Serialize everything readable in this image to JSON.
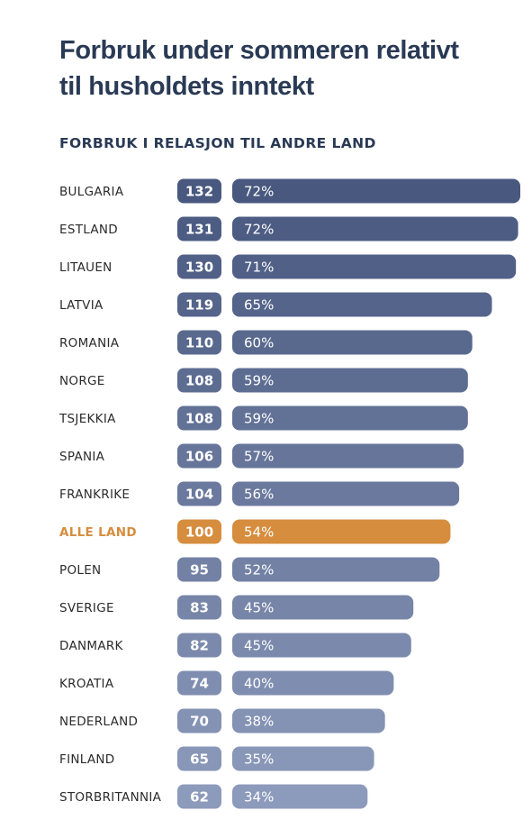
{
  "title_line1": "Forbruk under sommeren relativt",
  "title_line2": "til husholdets inntekt",
  "colors": {
    "title": "#2a3a55",
    "highlight": "#d68d3e",
    "bar_dark": "#48587f",
    "bar_light": "#8c9abb"
  },
  "chart_data": {
    "type": "bar",
    "orientation": "horizontal",
    "title": "FORBRUK I RELASJON TIL ANDRE LAND",
    "categories": [
      "BULGARIA",
      "ESTLAND",
      "LITAUEN",
      "LATVIA",
      "ROMANIA",
      "NORGE",
      "TSJEKKIA",
      "SPANIA",
      "FRANKRIKE",
      "ALLE LAND",
      "POLEN",
      "SVERIGE",
      "DANMARK",
      "KROATIA",
      "NEDERLAND",
      "FINLAND",
      "STORBRITANNIA"
    ],
    "series": [
      {
        "name": "Indeks",
        "values": [
          132,
          131,
          130,
          119,
          110,
          108,
          108,
          106,
          104,
          100,
          95,
          83,
          82,
          74,
          70,
          65,
          62
        ]
      },
      {
        "name": "Andel",
        "values": [
          "72%",
          "72%",
          "71%",
          "65%",
          "60%",
          "59%",
          "59%",
          "57%",
          "56%",
          "54%",
          "52%",
          "45%",
          "45%",
          "40%",
          "38%",
          "35%",
          "34%"
        ]
      }
    ],
    "highlight_category": "ALLE LAND",
    "grid": false,
    "legend": "none"
  }
}
